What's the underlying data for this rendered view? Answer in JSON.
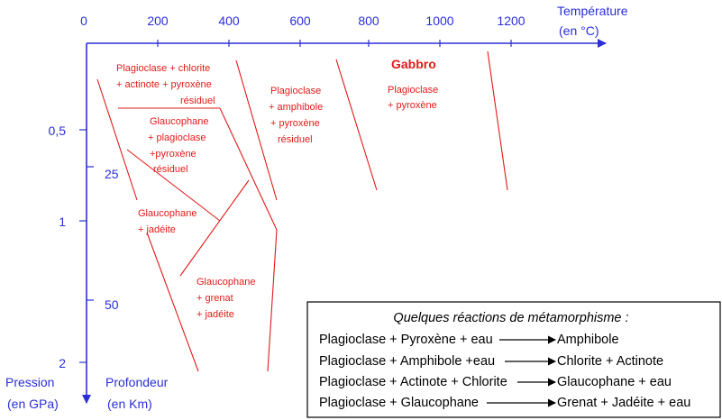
{
  "axes": {
    "temperature_ticks": [
      "0",
      "200",
      "400",
      "600",
      "800",
      "1000",
      "1200"
    ],
    "temperature_label_line1": "Température",
    "temperature_label_line2": "(en °C)",
    "pressure_ticks": [
      "0,5",
      "1",
      "2"
    ],
    "depth_ticks": [
      "25",
      "50"
    ],
    "pressure_label_line1": "Pression",
    "pressure_label_line2": "(en GPa)",
    "depth_label_line1": "Profondeur",
    "depth_label_line2": "(en Km)",
    "axis_color": "#2b2fd6"
  },
  "zones": {
    "line_color": "#e01b1b",
    "plagio_chlorite": [
      "Plagioclase + chlorite",
      "+ actinote + pyroxène",
      "résiduel"
    ],
    "plagio_amphibole": [
      "Plagioclase",
      "+ amphibole",
      "+ pyroxène",
      "résiduel"
    ],
    "gabbro_title": "Gabbro",
    "gabbro": [
      "Plagioclase",
      "+ pyroxène"
    ],
    "glauco_plagio": [
      "Glaucophane",
      "+ plagioclase",
      "+pyroxène",
      "résiduel"
    ],
    "glauco_jadeite": [
      "Glaucophane",
      "+ jadéite"
    ],
    "glauco_grenat": [
      "Glaucophane",
      "+ grenat",
      "+ jadéite"
    ]
  },
  "reactions": {
    "title": "Quelques réactions de métamorphisme :",
    "rows": [
      {
        "reactants": "Plagioclase + Pyroxène + eau",
        "products": "Amphibole"
      },
      {
        "reactants": "Plagioclase + Amphibole +eau",
        "products": "Chlorite + Actinote"
      },
      {
        "reactants": "Plagioclase + Actinote + Chlorite",
        "products": "Glaucophane + eau"
      },
      {
        "reactants": "Plagioclase + Glaucophane",
        "products": "Grenat + Jadéite + eau"
      }
    ]
  }
}
